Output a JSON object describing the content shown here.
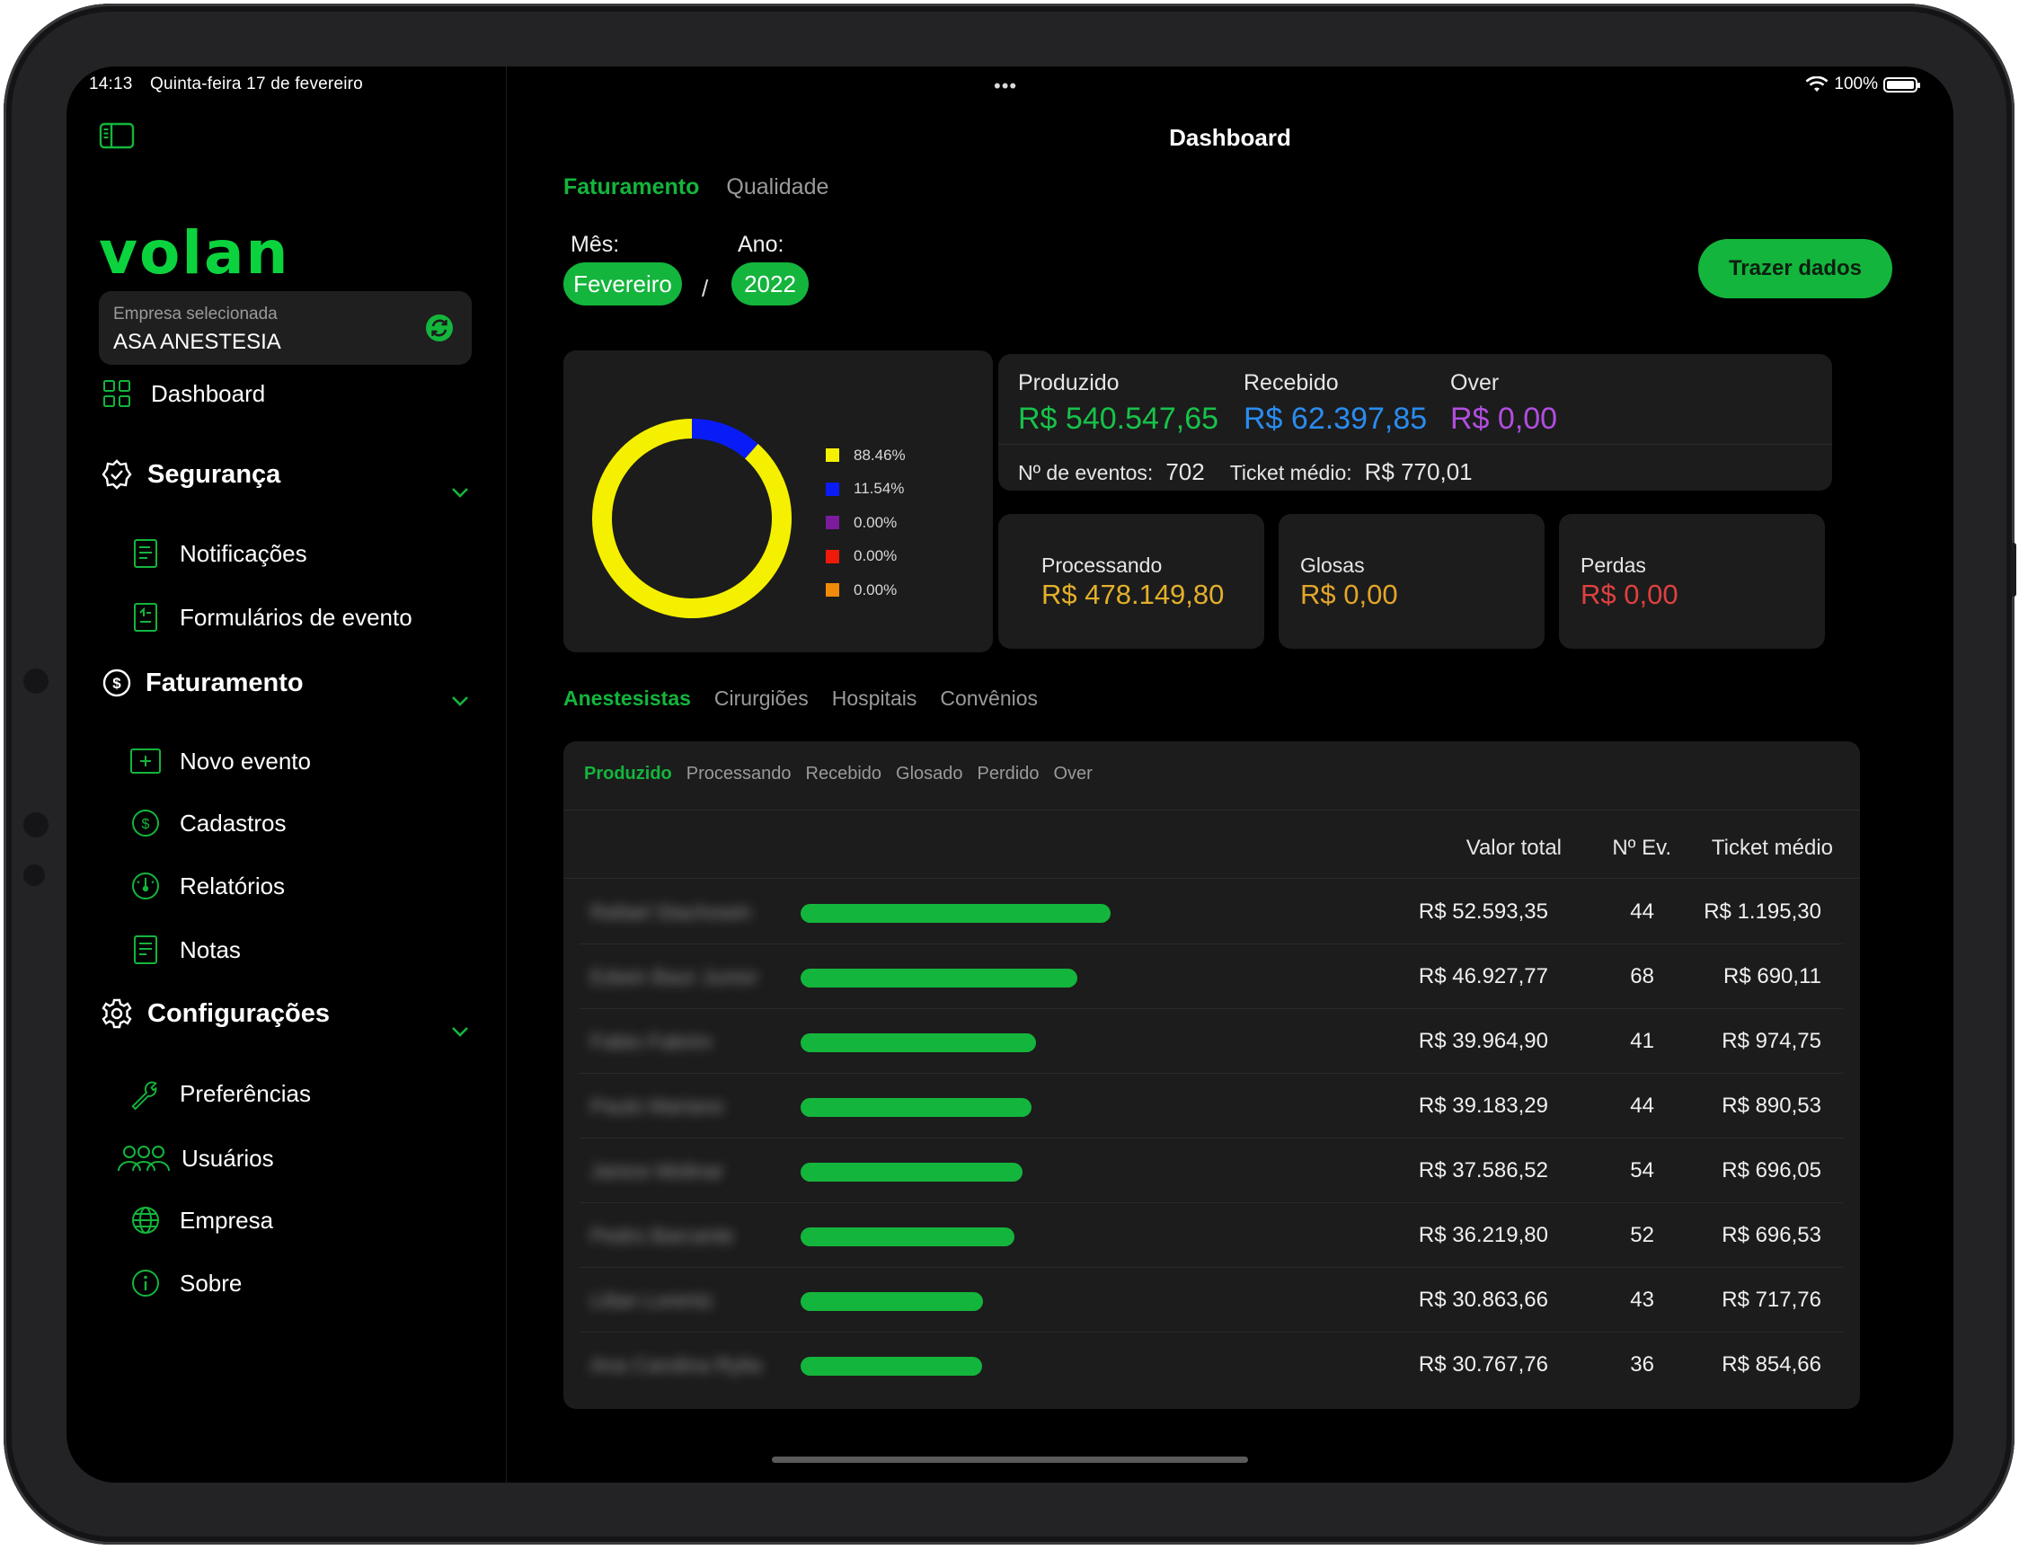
{
  "status_bar": {
    "time": "14:13",
    "date": "Quinta-feira 17 de fevereiro",
    "dots": "•••",
    "battery": "100%"
  },
  "sidebar": {
    "logo": "volan",
    "company": {
      "label": "Empresa selecionada",
      "name": "ASA ANESTESIA"
    },
    "dashboard": "Dashboard",
    "seguranca": {
      "title": "Segurança",
      "items": [
        "Notificações",
        "Formulários de evento"
      ]
    },
    "faturamento": {
      "title": "Faturamento",
      "items": [
        "Novo evento",
        "Cadastros",
        "Relatórios",
        "Notas"
      ]
    },
    "configuracoes": {
      "title": "Configurações",
      "items": [
        "Preferências",
        "Usuários",
        "Empresa",
        "Sobre"
      ]
    }
  },
  "header": {
    "title": "Dashboard"
  },
  "top_tabs": [
    "Faturamento",
    "Qualidade"
  ],
  "period": {
    "month_label": "Mês:",
    "month": "Fevereiro",
    "year_label": "Ano:",
    "year": "2022",
    "separator": "/"
  },
  "fetch_button": "Trazer dados",
  "chart_data": {
    "type": "pie",
    "labels": [
      "88.46%",
      "11.54%",
      "0.00%",
      "0.00%",
      "0.00%"
    ],
    "values": [
      88.46,
      11.54,
      0,
      0,
      0
    ],
    "colors": [
      "#f4f000",
      "#0a1cf5",
      "#7a1c9c",
      "#f01a0a",
      "#f08a0a"
    ]
  },
  "summary": {
    "produzido": {
      "label": "Produzido",
      "value": "R$ 540.547,65",
      "color": "#18c24a"
    },
    "recebido": {
      "label": "Recebido",
      "value": "R$ 62.397,85",
      "color": "#2a8cf0"
    },
    "over": {
      "label": "Over",
      "value": "R$ 0,00",
      "color": "#b04ee0"
    },
    "eventos": {
      "label": "Nº de eventos:",
      "value": "702"
    },
    "ticket": {
      "label": "Ticket médio:",
      "value": "R$ 770,01"
    }
  },
  "mini_cards": [
    {
      "label": "Processando",
      "value": "R$ 478.149,80",
      "color": "#e3b02a"
    },
    {
      "label": "Glosas",
      "value": "R$ 0,00",
      "color": "#e3a52a"
    },
    {
      "label": "Perdas",
      "value": "R$ 0,00",
      "color": "#e04040"
    }
  ],
  "sub_tabs": [
    "Anestesistas",
    "Cirurgiões",
    "Hospitais",
    "Convênios"
  ],
  "metric_tabs": [
    "Produzido",
    "Processando",
    "Recebido",
    "Glosado",
    "Perdido",
    "Over"
  ],
  "table": {
    "headers": {
      "valor": "Valor total",
      "eventos": "Nº Ev.",
      "ticket": "Ticket médio"
    },
    "rows": [
      {
        "name": "Rafael Stachowin",
        "valor": "R$ 52.593,35",
        "eventos": "44",
        "ticket": "R$ 1.195,30",
        "fraction": 1.0
      },
      {
        "name": "Edwin Baur Junior",
        "valor": "R$ 46.927,77",
        "eventos": "68",
        "ticket": "R$ 690,11",
        "fraction": 0.892
      },
      {
        "name": "Fabio Fabrim",
        "valor": "R$ 39.964,90",
        "eventos": "41",
        "ticket": "R$ 974,75",
        "fraction": 0.76
      },
      {
        "name": "Paulo Mariano",
        "valor": "R$ 39.183,29",
        "eventos": "44",
        "ticket": "R$ 890,53",
        "fraction": 0.745
      },
      {
        "name": "Janice Molinar",
        "valor": "R$ 37.586,52",
        "eventos": "54",
        "ticket": "R$ 696,05",
        "fraction": 0.715
      },
      {
        "name": "Pedro Barcante",
        "valor": "R$ 36.219,80",
        "eventos": "52",
        "ticket": "R$ 696,53",
        "fraction": 0.689
      },
      {
        "name": "Lilian Lorentz",
        "valor": "R$ 30.863,66",
        "eventos": "43",
        "ticket": "R$ 717,76",
        "fraction": 0.587
      },
      {
        "name": "Ana Carolina Rylia",
        "valor": "R$ 30.767,76",
        "eventos": "36",
        "ticket": "R$ 854,66",
        "fraction": 0.585
      }
    ]
  }
}
